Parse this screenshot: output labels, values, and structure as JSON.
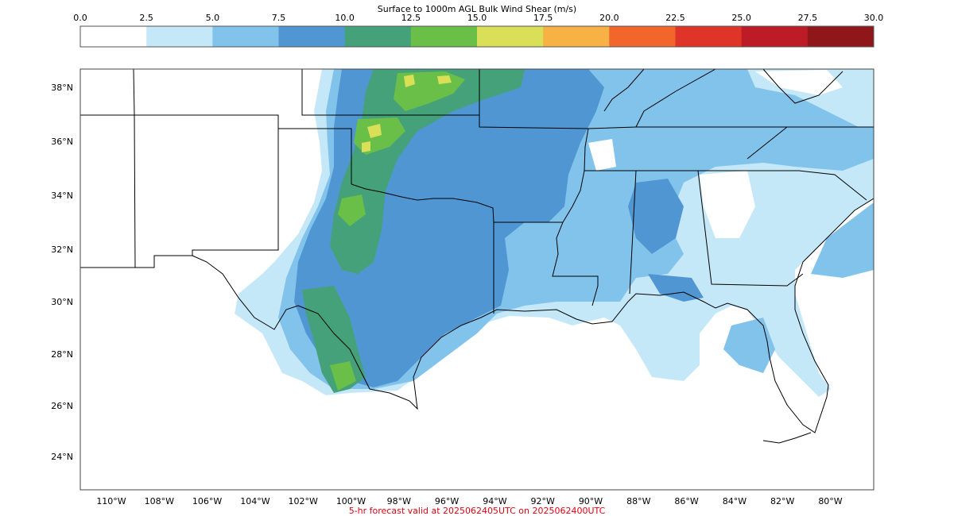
{
  "colorbar": {
    "title": "Surface to 1000m AGL Bulk Wind Shear (m/s)",
    "ticks": [
      "0.0",
      "2.5",
      "5.0",
      "7.5",
      "10.0",
      "12.5",
      "15.0",
      "17.5",
      "20.0",
      "22.5",
      "25.0",
      "27.5",
      "30.0"
    ],
    "colors": [
      "#ffffff",
      "#c5e8f8",
      "#82c3ec",
      "#5096d3",
      "#45a17a",
      "#6abf48",
      "#d9e057",
      "#f7b145",
      "#f2662b",
      "#de3528",
      "#bd1b26",
      "#8f1619"
    ]
  },
  "map": {
    "lat_labels": [
      "38°N",
      "36°N",
      "34°N",
      "32°N",
      "30°N",
      "28°N",
      "26°N",
      "24°N"
    ],
    "lon_labels": [
      "110°W",
      "108°W",
      "106°W",
      "104°W",
      "102°W",
      "100°W",
      "98°W",
      "96°W",
      "94°W",
      "92°W",
      "90°W",
      "88°W",
      "86°W",
      "84°W",
      "82°W",
      "80°W"
    ]
  },
  "footer": {
    "valid_text": "5-hr forecast valid at 2025062405UTC on 2025062400UTC",
    "color": "#e4000f"
  }
}
